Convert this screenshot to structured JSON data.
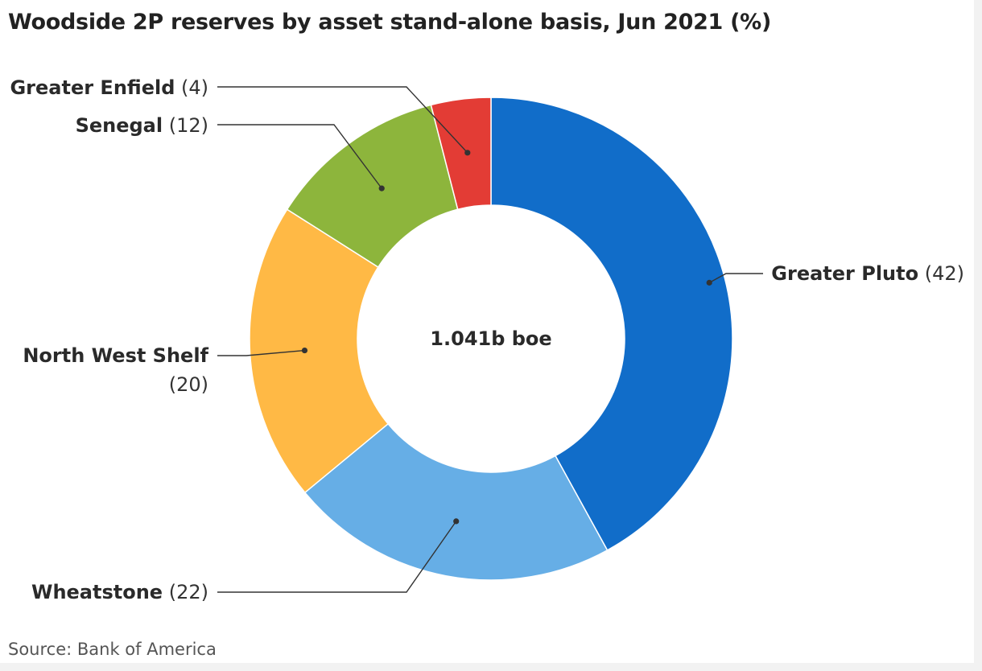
{
  "header": {
    "title": "Woodside 2P reserves by asset stand-alone basis, Jun 2021 (%)"
  },
  "footer": {
    "source": "Source: Bank of America"
  },
  "chart_data": {
    "type": "pie",
    "title": "Woodside 2P reserves by asset stand-alone basis, Jun 2021 (%)",
    "center_label": "1.041b boe",
    "categories": [
      "Greater Pluto",
      "Wheatstone",
      "North West Shelf",
      "Senegal",
      "Greater Enfield"
    ],
    "values": [
      42,
      22,
      20,
      12,
      4
    ],
    "colors": [
      "#116dc9",
      "#66aee6",
      "#ffb945",
      "#8db53c",
      "#e33c35"
    ],
    "value_labels": [
      "(42)",
      "(22)",
      "(20)",
      "(12)",
      "(4)"
    ]
  }
}
